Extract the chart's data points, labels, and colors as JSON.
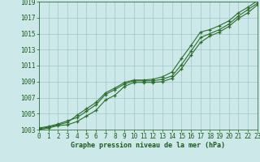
{
  "x": [
    0,
    1,
    2,
    3,
    4,
    5,
    6,
    7,
    8,
    9,
    10,
    11,
    12,
    13,
    14,
    15,
    16,
    17,
    18,
    19,
    20,
    21,
    22,
    23
  ],
  "line1": [
    1003.2,
    1003.4,
    1003.7,
    1004.1,
    1004.5,
    1005.3,
    1006.1,
    1007.4,
    1008.0,
    1008.7,
    1009.1,
    1009.1,
    1009.1,
    1009.3,
    1009.7,
    1011.1,
    1012.8,
    1014.5,
    1015.0,
    1015.5,
    1016.2,
    1017.2,
    1018.0,
    1018.8
  ],
  "line2": [
    1003.0,
    1003.2,
    1003.5,
    1003.6,
    1004.0,
    1004.7,
    1005.4,
    1006.7,
    1007.3,
    1008.4,
    1008.9,
    1008.9,
    1008.9,
    1009.0,
    1009.4,
    1010.6,
    1012.3,
    1013.9,
    1014.7,
    1015.2,
    1015.9,
    1016.9,
    1017.6,
    1018.6
  ],
  "line3": [
    1003.1,
    1003.3,
    1003.6,
    1003.9,
    1004.8,
    1005.6,
    1006.4,
    1007.6,
    1008.2,
    1008.9,
    1009.2,
    1009.2,
    1009.3,
    1009.6,
    1010.2,
    1011.9,
    1013.5,
    1015.2,
    1015.5,
    1016.0,
    1016.6,
    1017.6,
    1018.3,
    1019.1
  ],
  "xlim": [
    0,
    23
  ],
  "ylim": [
    1003,
    1019
  ],
  "yticks": [
    1003,
    1005,
    1007,
    1009,
    1011,
    1013,
    1015,
    1017,
    1019
  ],
  "xticks": [
    0,
    1,
    2,
    3,
    4,
    5,
    6,
    7,
    8,
    9,
    10,
    11,
    12,
    13,
    14,
    15,
    16,
    17,
    18,
    19,
    20,
    21,
    22,
    23
  ],
  "xlabel": "Graphe pression niveau de la mer (hPa)",
  "line_color": "#2d6e2d",
  "bg_color": "#cce8e8",
  "grid_color": "#9ec8c8",
  "tick_color": "#1a5c1a",
  "marker": "+",
  "markersize": 3.5,
  "linewidth": 0.8,
  "tick_fontsize": 5.5,
  "xlabel_fontsize": 6.0
}
